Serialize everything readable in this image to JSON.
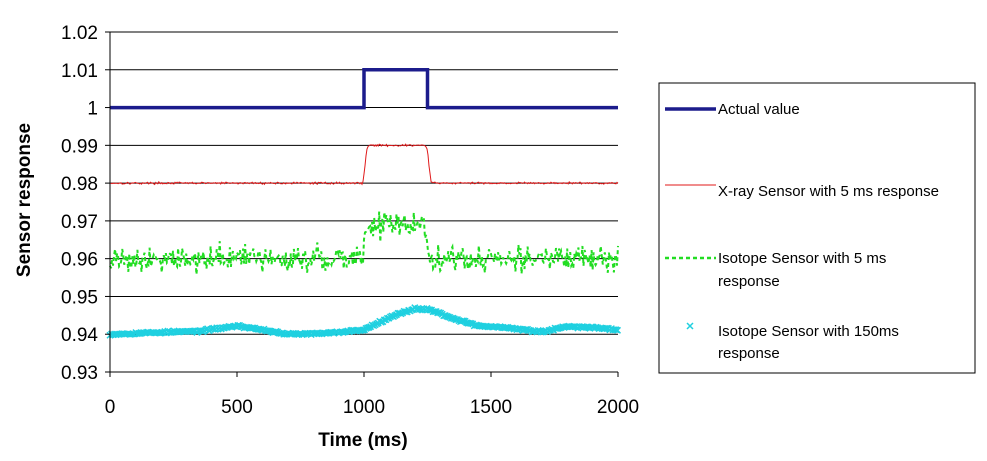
{
  "chart_data": {
    "type": "line",
    "xlabel": "Time (ms)",
    "ylabel": "Sensor response",
    "xlim": [
      0,
      2000
    ],
    "ylim": [
      0.93,
      1.02
    ],
    "xticks": [
      "0",
      "500",
      "1000",
      "1500",
      "2000"
    ],
    "yticks": [
      "0.93",
      "0.94",
      "0.95",
      "0.96",
      "0.97",
      "0.98",
      "0.99",
      "1",
      "1.01",
      "1.02"
    ],
    "grid": "horizontal",
    "legend_position": "right",
    "series": [
      {
        "name": "Actual value",
        "style": "thick-line",
        "color": "#1c1c8c",
        "x": [
          0,
          1000,
          1000,
          1250,
          1250,
          2000
        ],
        "y": [
          1.0,
          1.0,
          1.01,
          1.01,
          1.0,
          1.0
        ]
      },
      {
        "name": "X-ray Sensor with 5 ms response",
        "style": "thin-line",
        "color": "#e0191a",
        "x": [
          0,
          995,
          1005,
          1010,
          1020,
          1240,
          1250,
          1255,
          1265,
          2000
        ],
        "y": [
          0.98,
          0.98,
          0.985,
          0.989,
          0.99,
          0.99,
          0.989,
          0.985,
          0.98,
          0.98
        ],
        "noise": 0.0004
      },
      {
        "name": "Isotope Sensor with 5 ms response",
        "style": "dashed-line",
        "color": "#22dd22",
        "x": [
          0,
          995,
          1010,
          1240,
          1255,
          2000
        ],
        "y": [
          0.96,
          0.96,
          0.969,
          0.969,
          0.96,
          0.96
        ],
        "noise": 0.005
      },
      {
        "name": "Isotope Sensor with 150ms response",
        "style": "x-markers",
        "color": "#1fd0e0",
        "x": [
          0,
          200,
          350,
          500,
          600,
          700,
          850,
          1000,
          1100,
          1200,
          1260,
          1350,
          1450,
          1550,
          1700,
          1800,
          1900,
          2000
        ],
        "y": [
          0.94,
          0.9405,
          0.9408,
          0.9422,
          0.9412,
          0.94,
          0.9402,
          0.9412,
          0.9445,
          0.9468,
          0.9465,
          0.9442,
          0.9422,
          0.9418,
          0.9406,
          0.942,
          0.9418,
          0.9412
        ],
        "noise": 0.0004
      }
    ]
  }
}
